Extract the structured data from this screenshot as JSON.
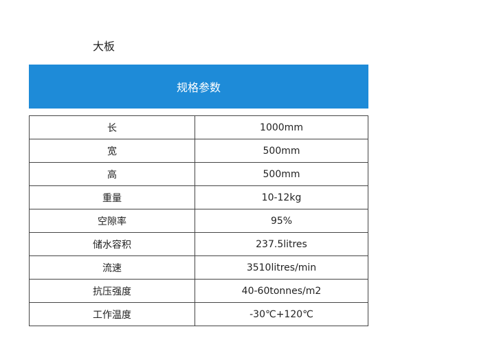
{
  "header": {
    "title": "大板",
    "banner": "规格参数"
  },
  "table": {
    "rows": [
      [
        "长",
        "1000mm"
      ],
      [
        "宽",
        "500mm"
      ],
      [
        "高",
        "500mm"
      ],
      [
        "重量",
        "10-12kg"
      ],
      [
        "空隙率",
        "95%"
      ],
      [
        "储水容积",
        "237.5litres"
      ],
      [
        "流速",
        "3510litres/min"
      ],
      [
        "抗压强度",
        "40-60tonnes/m2"
      ],
      [
        "工作温度",
        "-30℃+120℃"
      ]
    ]
  }
}
